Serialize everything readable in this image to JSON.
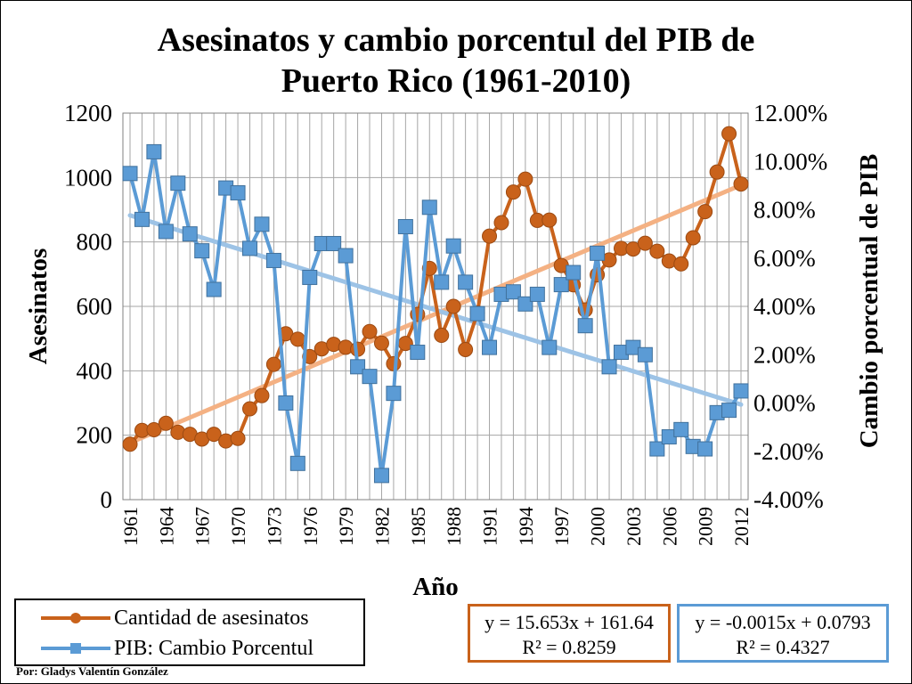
{
  "chart_data": {
    "type": "line",
    "title": "Asesinatos y cambio porcentul del PIB de\nPuerto Rico (1961-2010)",
    "xlabel": "Año",
    "ylabel": "Asesinatos",
    "y2label": "Cambio porcentual de PIB",
    "x": [
      1961,
      1962,
      1963,
      1964,
      1965,
      1966,
      1967,
      1968,
      1969,
      1970,
      1971,
      1972,
      1973,
      1974,
      1975,
      1976,
      1977,
      1978,
      1979,
      1980,
      1981,
      1982,
      1983,
      1984,
      1985,
      1986,
      1987,
      1988,
      1989,
      1990,
      1991,
      1992,
      1993,
      1994,
      1995,
      1996,
      1997,
      1998,
      1999,
      2000,
      2001,
      2002,
      2003,
      2004,
      2005,
      2006,
      2007,
      2008,
      2009,
      2010,
      2011,
      2012
    ],
    "x_tick_labels": [
      "1961",
      "1964",
      "1967",
      "1970",
      "1973",
      "1976",
      "1979",
      "1982",
      "1985",
      "1988",
      "1991",
      "1994",
      "1997",
      "2000",
      "2003",
      "2006",
      "2009",
      "2012"
    ],
    "ylim": [
      0,
      1200
    ],
    "y_ticks": [
      "0",
      "200",
      "400",
      "600",
      "800",
      "1000",
      "1200"
    ],
    "y2lim": [
      -0.04,
      0.12
    ],
    "y2_ticks": [
      "-4.00%",
      "-2.00%",
      "0.00%",
      "2.00%",
      "4.00%",
      "6.00%",
      "8.00%",
      "10.00%",
      "12.00%"
    ],
    "grid": true,
    "legend_position": "bottom-left",
    "series": [
      {
        "name": "Cantidad de asesinatos",
        "axis": "left",
        "color": "#c9621b",
        "marker": "circle",
        "values": [
          172,
          215,
          217,
          237,
          209,
          203,
          188,
          203,
          182,
          190,
          282,
          323,
          420,
          515,
          498,
          444,
          468,
          482,
          473,
          467,
          522,
          486,
          422,
          485,
          575,
          718,
          510,
          600,
          466,
          580,
          818,
          860,
          955,
          995,
          867,
          868,
          727,
          667,
          589,
          698,
          744,
          780,
          778,
          796,
          771,
          741,
          732,
          813,
          894,
          1017,
          1136,
          980
        ]
      },
      {
        "name": "PIB: Cambio Porcentul",
        "axis": "right",
        "color": "#5b9bd5",
        "marker": "square",
        "values": [
          0.095,
          0.076,
          0.104,
          0.071,
          0.091,
          0.07,
          0.063,
          0.047,
          0.089,
          0.087,
          0.064,
          0.074,
          0.059,
          0.0,
          -0.025,
          0.052,
          0.066,
          0.066,
          0.061,
          0.015,
          0.011,
          -0.03,
          0.004,
          0.073,
          0.021,
          0.081,
          0.05,
          0.065,
          0.05,
          0.037,
          0.023,
          0.045,
          0.046,
          0.041,
          0.045,
          0.023,
          0.049,
          0.054,
          0.032,
          0.062,
          0.015,
          0.021,
          0.023,
          0.02,
          -0.019,
          -0.014,
          -0.011,
          -0.018,
          -0.019,
          -0.004,
          -0.003,
          0.005
        ]
      }
    ],
    "trendlines": [
      {
        "series": "Cantidad de asesinatos",
        "color": "#f4b183",
        "equation": "y = 15.653x + 161.64",
        "r2": "R² = 0.8259",
        "box_color": "#c9621b"
      },
      {
        "series": "PIB: Cambio Porcentul",
        "color": "#9dc3e6",
        "equation": "y = -0.0015x + 0.0793",
        "r2": "R² = 0.4327",
        "box_color": "#5b9bd5"
      }
    ],
    "credit": "Por: Gladys Valentín González"
  }
}
